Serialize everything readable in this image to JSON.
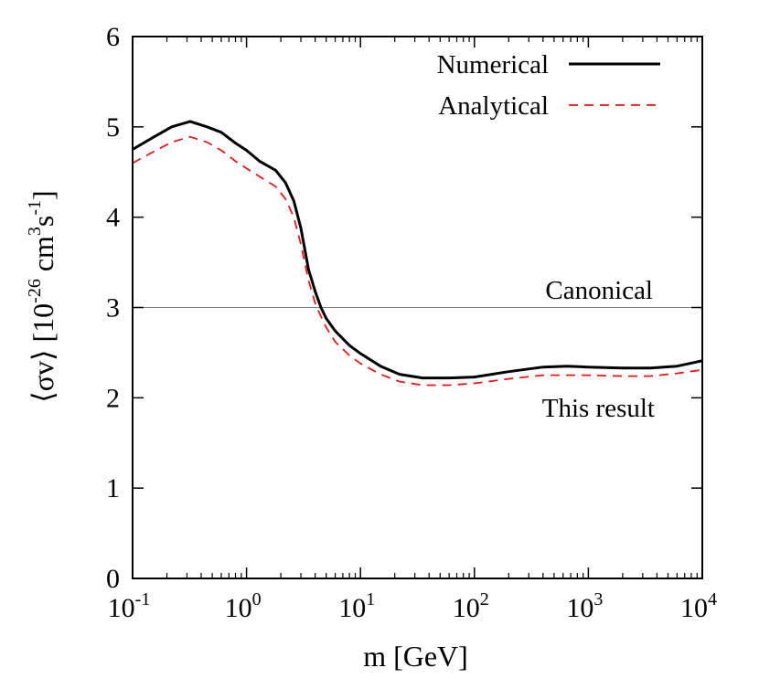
{
  "chart_data": {
    "type": "line",
    "xlabel": "m [GeV]",
    "ylabel": {
      "prefix": "⟨σv⟩ [10",
      "exp1": "-26",
      "mid1": " cm",
      "exp2": "3",
      "mid2": "s",
      "exp3": "-1",
      "suffix": "]"
    },
    "x_scale": "log",
    "xlim": [
      0.1,
      10000
    ],
    "ylim": [
      0,
      6
    ],
    "x_ticks": [
      {
        "value": 0.1,
        "base": "10",
        "exp": "-1"
      },
      {
        "value": 1,
        "base": "10",
        "exp": "0"
      },
      {
        "value": 10,
        "base": "10",
        "exp": "1"
      },
      {
        "value": 100,
        "base": "10",
        "exp": "2"
      },
      {
        "value": 1000,
        "base": "10",
        "exp": "3"
      },
      {
        "value": 10000,
        "base": "10",
        "exp": "4"
      }
    ],
    "y_ticks": [
      "0",
      "1",
      "2",
      "3",
      "4",
      "5",
      "6"
    ],
    "grid": false,
    "legend_position": "top-right",
    "series": [
      {
        "name": "Numerical",
        "color": "#000000",
        "style": "solid",
        "points": [
          [
            0.1,
            4.75
          ],
          [
            0.15,
            4.88
          ],
          [
            0.22,
            5.0
          ],
          [
            0.32,
            5.06
          ],
          [
            0.45,
            5.0
          ],
          [
            0.6,
            4.94
          ],
          [
            0.8,
            4.82
          ],
          [
            1.0,
            4.74
          ],
          [
            1.3,
            4.62
          ],
          [
            1.8,
            4.52
          ],
          [
            2.2,
            4.38
          ],
          [
            2.6,
            4.18
          ],
          [
            3.0,
            3.88
          ],
          [
            3.5,
            3.42
          ],
          [
            4.0,
            3.18
          ],
          [
            4.5,
            3.0
          ],
          [
            5.0,
            2.88
          ],
          [
            6.0,
            2.74
          ],
          [
            8.0,
            2.58
          ],
          [
            10,
            2.49
          ],
          [
            15,
            2.35
          ],
          [
            22,
            2.26
          ],
          [
            35,
            2.22
          ],
          [
            60,
            2.22
          ],
          [
            100,
            2.23
          ],
          [
            200,
            2.29
          ],
          [
            400,
            2.34
          ],
          [
            650,
            2.35
          ],
          [
            1000,
            2.34
          ],
          [
            2000,
            2.33
          ],
          [
            3500,
            2.33
          ],
          [
            6000,
            2.35
          ],
          [
            10000,
            2.41
          ]
        ]
      },
      {
        "name": "Analytical",
        "color": "#e31a1c",
        "style": "dashed",
        "points": [
          [
            0.1,
            4.6
          ],
          [
            0.15,
            4.72
          ],
          [
            0.22,
            4.83
          ],
          [
            0.32,
            4.89
          ],
          [
            0.45,
            4.83
          ],
          [
            0.6,
            4.74
          ],
          [
            0.8,
            4.62
          ],
          [
            1.0,
            4.54
          ],
          [
            1.3,
            4.45
          ],
          [
            1.8,
            4.34
          ],
          [
            2.2,
            4.2
          ],
          [
            2.6,
            4.0
          ],
          [
            3.0,
            3.7
          ],
          [
            3.5,
            3.3
          ],
          [
            4.0,
            3.05
          ],
          [
            4.5,
            2.9
          ],
          [
            5.0,
            2.78
          ],
          [
            6.0,
            2.62
          ],
          [
            8.0,
            2.47
          ],
          [
            10,
            2.38
          ],
          [
            15,
            2.26
          ],
          [
            22,
            2.18
          ],
          [
            35,
            2.14
          ],
          [
            60,
            2.14
          ],
          [
            100,
            2.16
          ],
          [
            200,
            2.21
          ],
          [
            400,
            2.25
          ],
          [
            650,
            2.25
          ],
          [
            1000,
            2.25
          ],
          [
            2000,
            2.24
          ],
          [
            3500,
            2.24
          ],
          [
            6000,
            2.27
          ],
          [
            10000,
            2.31
          ]
        ]
      }
    ],
    "reference_line": {
      "y": 3,
      "color": "#808080",
      "label": "Canonical"
    },
    "annotations": [
      {
        "text": "This result"
      }
    ]
  }
}
